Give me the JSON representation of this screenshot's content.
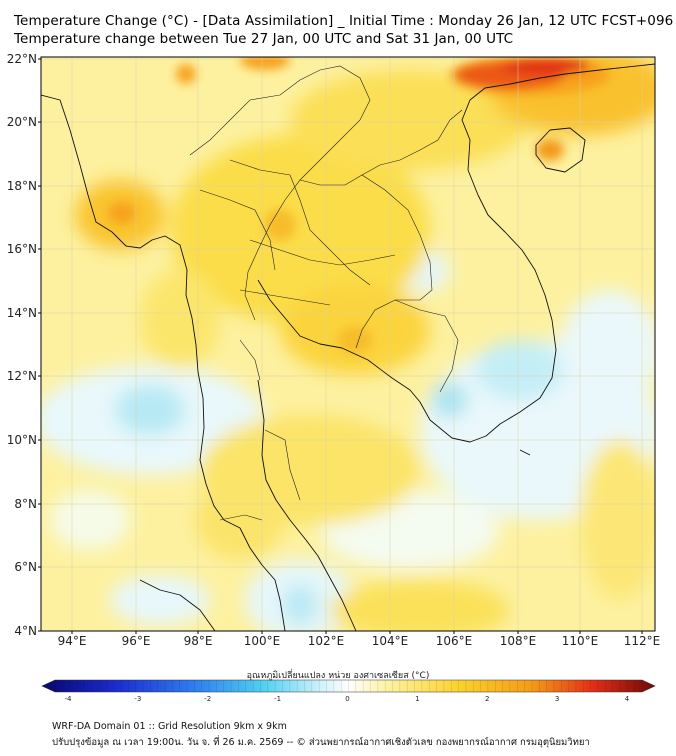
{
  "title": {
    "line1": "Temperature Change (°C) - [Data Assimilation] _ Initial Time : Monday 26 Jan, 12 UTC FCST+096",
    "line2": "Temperature change between Tue 27 Jan, 00 UTC and Sat 31 Jan, 00 UTC"
  },
  "map": {
    "lat_labels": [
      "22°N",
      "20°N",
      "18°N",
      "16°N",
      "14°N",
      "12°N",
      "10°N",
      "8°N",
      "6°N",
      "4°N"
    ],
    "lon_labels": [
      "94°E",
      "96°E",
      "98°E",
      "100°E",
      "102°E",
      "104°E",
      "106°E",
      "108°E",
      "110°E",
      "112°E"
    ],
    "colors": {
      "warm_light": "#fdf6b4",
      "warm": "#fbd93a",
      "warm_strong": "#f8a419",
      "hot": "#e8331a",
      "cool_light": "#e7f8fc",
      "cool": "#a9e6f4",
      "border": "#111111"
    }
  },
  "colorbar": {
    "title": "อุณหภูมิเปลี่ยนแปลง หน่วย องศาเซลเซียส (°C)",
    "ticks": [
      "-4",
      "-3",
      "-2",
      "-1",
      "0",
      "1",
      "2",
      "3",
      "4"
    ],
    "range": [
      -4,
      4
    ]
  },
  "footer": {
    "line1": "WRF-DA Domain 01 :: Grid Resolution 9km x 9km",
    "line2": "ปรับปรุงข้อมูล ณ เวลา 19:00น. วัน จ. ที่ 26 ม.ค. 2569 -- © ส่วนพยากรณ์อากาศเชิงตัวเลข กองพยากรณ์อากาศ กรมอุตุนิยมวิทยา"
  }
}
